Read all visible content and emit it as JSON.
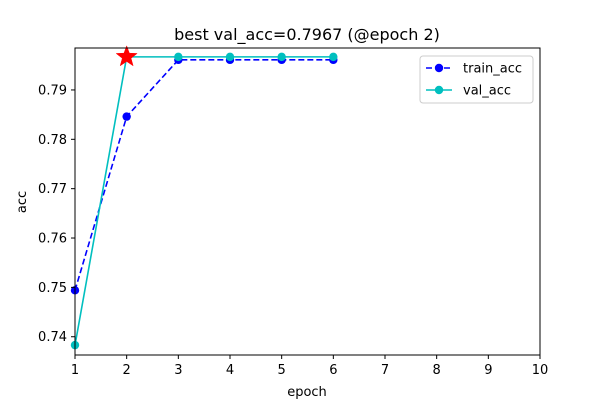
{
  "chart_data": {
    "type": "line",
    "title": "best val_acc=0.7967 (@epoch 2)",
    "xlabel": "epoch",
    "ylabel": "acc",
    "xlim": [
      1,
      10
    ],
    "ylim": [
      0.7363,
      0.7985
    ],
    "xticks": [
      1,
      2,
      3,
      4,
      5,
      6,
      7,
      8,
      9,
      10
    ],
    "yticks": [
      0.74,
      0.75,
      0.76,
      0.77,
      0.78,
      0.79
    ],
    "grid": false,
    "legend_position": "top-right",
    "series": [
      {
        "name": "train_acc",
        "x": [
          1,
          2,
          3,
          4,
          5,
          6
        ],
        "values": [
          0.7494,
          0.7846,
          0.7961,
          0.7961,
          0.7961,
          0.7961
        ],
        "color": "#0000ff",
        "line_style": "dashed",
        "marker": "circle"
      },
      {
        "name": "val_acc",
        "x": [
          1,
          2,
          3,
          4,
          5,
          6
        ],
        "values": [
          0.7383,
          0.7967,
          0.7967,
          0.7967,
          0.7967,
          0.7967
        ],
        "color": "#00bfbf",
        "line_style": "solid",
        "marker": "circle"
      }
    ],
    "best_point": {
      "x": 2,
      "y": 0.7967,
      "marker": "star",
      "color": "#ff0000"
    }
  }
}
